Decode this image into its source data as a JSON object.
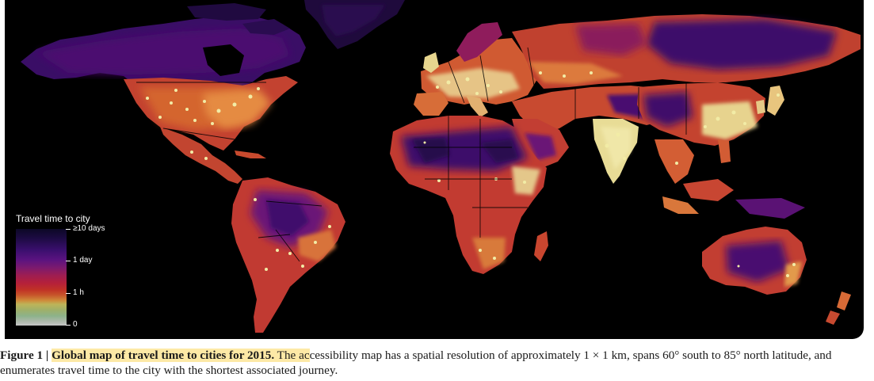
{
  "map": {
    "legend": {
      "title": "Travel time to city",
      "labels": {
        "max": "≥10 days",
        "day": "1 day",
        "hour": "1 h",
        "zero": "0"
      }
    },
    "colors": {
      "ocean": "#000000",
      "remote": "#3b0f6e",
      "far": "#8e1b5c",
      "mid": "#c7402e",
      "near": "#e0833a",
      "city": "#e9e29a",
      "borders": "#000000"
    }
  },
  "caption": {
    "label": "Figure 1 | ",
    "title": "Global map of travel time to cities for 2015.",
    "body_highlight": " The ac",
    "body": "cessibility map has a spatial resolution of approximately 1 × 1 km, spans 60° south to 85° north latitude, and enumerates travel time to the city with the shortest associated journey."
  }
}
